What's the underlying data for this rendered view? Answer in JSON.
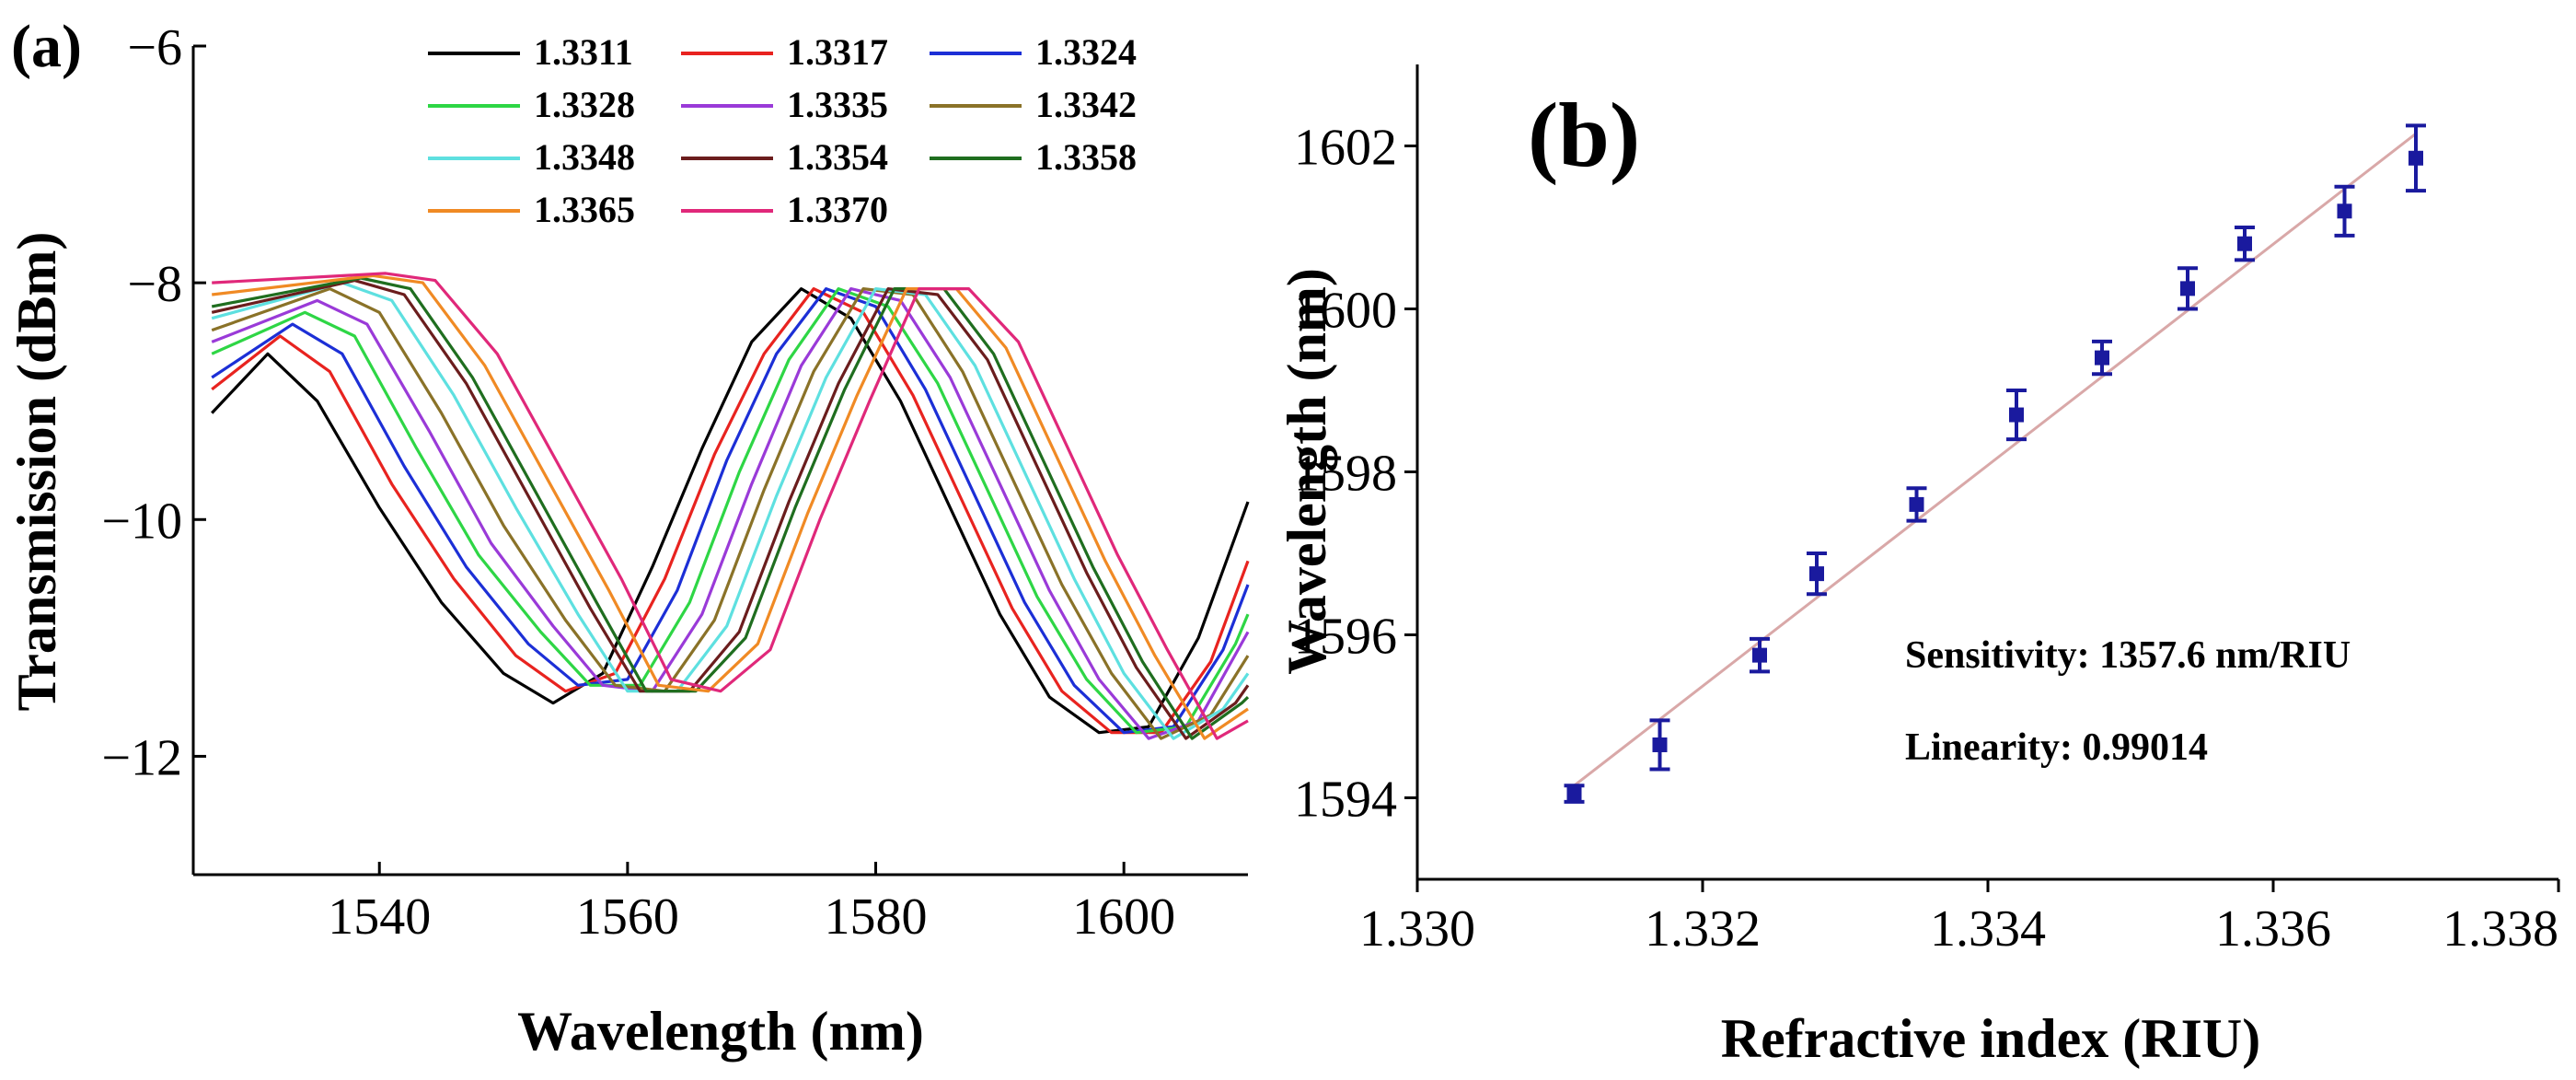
{
  "chart_data": [
    {
      "panel": "(a)",
      "type": "line",
      "xlabel": "Wavelength (nm)",
      "ylabel": "Transmission (dBm)",
      "xlim": [
        1525,
        1610
      ],
      "ylim": [
        -13,
        -6
      ],
      "xticks": [
        "1540",
        "1560",
        "1580",
        "1600"
      ],
      "xtick_values": [
        1540,
        1560,
        1580,
        1600
      ],
      "yticks": [
        "−6",
        "−8",
        "−10",
        "−12"
      ],
      "ytick_values": [
        -6,
        -8,
        -10,
        -12
      ],
      "grid": false,
      "legend_position": "top",
      "series": [
        {
          "name": "1.3311",
          "color": "#000000",
          "values": [
            [
              1526.5,
              -9.1
            ],
            [
              1531,
              -8.6
            ],
            [
              1535,
              -9.0
            ],
            [
              1540,
              -9.9
            ],
            [
              1545,
              -10.7
            ],
            [
              1550,
              -11.3
            ],
            [
              1554,
              -11.55
            ],
            [
              1558,
              -11.3
            ],
            [
              1562,
              -10.4
            ],
            [
              1566,
              -9.4
            ],
            [
              1570,
              -8.5
            ],
            [
              1574,
              -8.05
            ],
            [
              1578,
              -8.3
            ],
            [
              1582,
              -9.0
            ],
            [
              1586,
              -9.9
            ],
            [
              1590,
              -10.8
            ],
            [
              1594,
              -11.5
            ],
            [
              1598,
              -11.8
            ],
            [
              1602,
              -11.75
            ],
            [
              1606,
              -11.0
            ],
            [
              1610,
              -9.85
            ]
          ]
        },
        {
          "name": "1.3317",
          "color": "#e8231f",
          "values": [
            [
              1526.5,
              -8.9
            ],
            [
              1532,
              -8.45
            ],
            [
              1536,
              -8.75
            ],
            [
              1541,
              -9.7
            ],
            [
              1546,
              -10.5
            ],
            [
              1551,
              -11.15
            ],
            [
              1555,
              -11.45
            ],
            [
              1559,
              -11.3
            ],
            [
              1563,
              -10.5
            ],
            [
              1567,
              -9.45
            ],
            [
              1571,
              -8.6
            ],
            [
              1575,
              -8.05
            ],
            [
              1579,
              -8.25
            ],
            [
              1583,
              -8.95
            ],
            [
              1587,
              -9.85
            ],
            [
              1591,
              -10.75
            ],
            [
              1595,
              -11.45
            ],
            [
              1599,
              -11.8
            ],
            [
              1603,
              -11.8
            ],
            [
              1607,
              -11.2
            ],
            [
              1610,
              -10.35
            ]
          ]
        },
        {
          "name": "1.3324",
          "color": "#1c2fd6",
          "values": [
            [
              1526.5,
              -8.8
            ],
            [
              1533,
              -8.35
            ],
            [
              1537,
              -8.6
            ],
            [
              1542,
              -9.55
            ],
            [
              1547,
              -10.4
            ],
            [
              1552,
              -11.05
            ],
            [
              1556,
              -11.4
            ],
            [
              1560,
              -11.35
            ],
            [
              1564,
              -10.6
            ],
            [
              1568,
              -9.5
            ],
            [
              1572,
              -8.6
            ],
            [
              1576,
              -8.05
            ],
            [
              1580,
              -8.2
            ],
            [
              1584,
              -8.9
            ],
            [
              1588,
              -9.8
            ],
            [
              1592,
              -10.7
            ],
            [
              1596,
              -11.4
            ],
            [
              1600,
              -11.8
            ],
            [
              1604,
              -11.75
            ],
            [
              1608,
              -11.1
            ],
            [
              1610,
              -10.55
            ]
          ]
        },
        {
          "name": "1.3328",
          "color": "#2ed645",
          "values": [
            [
              1526.5,
              -8.6
            ],
            [
              1534,
              -8.25
            ],
            [
              1538,
              -8.45
            ],
            [
              1543,
              -9.4
            ],
            [
              1548,
              -10.3
            ],
            [
              1553,
              -10.95
            ],
            [
              1557,
              -11.4
            ],
            [
              1561,
              -11.4
            ],
            [
              1565,
              -10.7
            ],
            [
              1569,
              -9.6
            ],
            [
              1573,
              -8.65
            ],
            [
              1577,
              -8.05
            ],
            [
              1581,
              -8.2
            ],
            [
              1585,
              -8.85
            ],
            [
              1589,
              -9.75
            ],
            [
              1593,
              -10.65
            ],
            [
              1597,
              -11.35
            ],
            [
              1601,
              -11.8
            ],
            [
              1605,
              -11.75
            ],
            [
              1609,
              -11.05
            ],
            [
              1610,
              -10.8
            ]
          ]
        },
        {
          "name": "1.3335",
          "color": "#9a3ad8",
          "values": [
            [
              1526.5,
              -8.5
            ],
            [
              1535,
              -8.15
            ],
            [
              1539,
              -8.35
            ],
            [
              1544,
              -9.25
            ],
            [
              1549,
              -10.2
            ],
            [
              1554,
              -10.9
            ],
            [
              1558,
              -11.4
            ],
            [
              1562,
              -11.45
            ],
            [
              1566,
              -10.8
            ],
            [
              1570,
              -9.7
            ],
            [
              1574,
              -8.7
            ],
            [
              1578,
              -8.05
            ],
            [
              1582,
              -8.15
            ],
            [
              1586,
              -8.8
            ],
            [
              1590,
              -9.7
            ],
            [
              1594,
              -10.6
            ],
            [
              1598,
              -11.35
            ],
            [
              1602,
              -11.85
            ],
            [
              1606,
              -11.7
            ],
            [
              1610,
              -10.95
            ]
          ]
        },
        {
          "name": "1.3342",
          "color": "#8a7228",
          "values": [
            [
              1526.5,
              -8.4
            ],
            [
              1536,
              -8.05
            ],
            [
              1540,
              -8.25
            ],
            [
              1545,
              -9.1
            ],
            [
              1550,
              -10.05
            ],
            [
              1555,
              -10.85
            ],
            [
              1559,
              -11.4
            ],
            [
              1563,
              -11.45
            ],
            [
              1567,
              -10.85
            ],
            [
              1571,
              -9.75
            ],
            [
              1575,
              -8.75
            ],
            [
              1579,
              -8.05
            ],
            [
              1583,
              -8.1
            ],
            [
              1587,
              -8.75
            ],
            [
              1591,
              -9.65
            ],
            [
              1595,
              -10.55
            ],
            [
              1599,
              -11.3
            ],
            [
              1603,
              -11.85
            ],
            [
              1607,
              -11.65
            ],
            [
              1610,
              -11.15
            ]
          ]
        },
        {
          "name": "1.3348",
          "color": "#5ee0e0",
          "values": [
            [
              1526.5,
              -8.3
            ],
            [
              1537,
              -8.0
            ],
            [
              1541,
              -8.15
            ],
            [
              1546,
              -8.95
            ],
            [
              1551,
              -9.9
            ],
            [
              1556,
              -10.8
            ],
            [
              1560,
              -11.45
            ],
            [
              1564,
              -11.45
            ],
            [
              1568,
              -10.9
            ],
            [
              1572,
              -9.8
            ],
            [
              1576,
              -8.8
            ],
            [
              1580,
              -8.05
            ],
            [
              1584,
              -8.1
            ],
            [
              1588,
              -8.7
            ],
            [
              1592,
              -9.6
            ],
            [
              1596,
              -10.5
            ],
            [
              1600,
              -11.3
            ],
            [
              1604,
              -11.85
            ],
            [
              1608,
              -11.6
            ],
            [
              1610,
              -11.3
            ]
          ]
        },
        {
          "name": "1.3354",
          "color": "#6b1d1d",
          "values": [
            [
              1526.5,
              -8.25
            ],
            [
              1538,
              -7.98
            ],
            [
              1542,
              -8.1
            ],
            [
              1547,
              -8.85
            ],
            [
              1552,
              -9.8
            ],
            [
              1557,
              -10.75
            ],
            [
              1561,
              -11.45
            ],
            [
              1565,
              -11.45
            ],
            [
              1569,
              -10.95
            ],
            [
              1573,
              -9.85
            ],
            [
              1577,
              -8.85
            ],
            [
              1581,
              -8.05
            ],
            [
              1585,
              -8.1
            ],
            [
              1589,
              -8.65
            ],
            [
              1593,
              -9.55
            ],
            [
              1597,
              -10.45
            ],
            [
              1601,
              -11.25
            ],
            [
              1605,
              -11.85
            ],
            [
              1609,
              -11.55
            ],
            [
              1610,
              -11.4
            ]
          ]
        },
        {
          "name": "1.3358",
          "color": "#1f6e1f",
          "values": [
            [
              1526.5,
              -8.2
            ],
            [
              1538.5,
              -7.96
            ],
            [
              1542.5,
              -8.05
            ],
            [
              1547.5,
              -8.8
            ],
            [
              1552.5,
              -9.75
            ],
            [
              1557.5,
              -10.7
            ],
            [
              1561.5,
              -11.45
            ],
            [
              1565.5,
              -11.45
            ],
            [
              1569.5,
              -11.0
            ],
            [
              1573.5,
              -9.9
            ],
            [
              1577.5,
              -8.9
            ],
            [
              1581.5,
              -8.05
            ],
            [
              1585.5,
              -8.05
            ],
            [
              1589.5,
              -8.6
            ],
            [
              1593.5,
              -9.5
            ],
            [
              1597.5,
              -10.4
            ],
            [
              1601.5,
              -11.2
            ],
            [
              1605.5,
              -11.85
            ],
            [
              1609.5,
              -11.55
            ],
            [
              1610,
              -11.5
            ]
          ]
        },
        {
          "name": "1.3365",
          "color": "#f08a24",
          "values": [
            [
              1526.5,
              -8.1
            ],
            [
              1539.5,
              -7.94
            ],
            [
              1543.5,
              -8.0
            ],
            [
              1548.5,
              -8.7
            ],
            [
              1553.5,
              -9.65
            ],
            [
              1558.5,
              -10.6
            ],
            [
              1562.5,
              -11.4
            ],
            [
              1566.5,
              -11.45
            ],
            [
              1570.5,
              -11.05
            ],
            [
              1574.5,
              -9.95
            ],
            [
              1578.5,
              -8.95
            ],
            [
              1582.5,
              -8.05
            ],
            [
              1586.5,
              -8.05
            ],
            [
              1590.5,
              -8.55
            ],
            [
              1594.5,
              -9.45
            ],
            [
              1598.5,
              -10.35
            ],
            [
              1602.5,
              -11.15
            ],
            [
              1606.5,
              -11.85
            ],
            [
              1610,
              -11.6
            ]
          ]
        },
        {
          "name": "1.3370",
          "color": "#e0287a",
          "values": [
            [
              1526.5,
              -8.0
            ],
            [
              1540.5,
              -7.92
            ],
            [
              1544.5,
              -7.98
            ],
            [
              1549.5,
              -8.6
            ],
            [
              1554.5,
              -9.55
            ],
            [
              1559.5,
              -10.5
            ],
            [
              1563.5,
              -11.35
            ],
            [
              1567.5,
              -11.45
            ],
            [
              1571.5,
              -11.1
            ],
            [
              1575.5,
              -10.0
            ],
            [
              1579.5,
              -9.0
            ],
            [
              1583.5,
              -8.05
            ],
            [
              1587.5,
              -8.05
            ],
            [
              1591.5,
              -8.5
            ],
            [
              1595.5,
              -9.4
            ],
            [
              1599.5,
              -10.3
            ],
            [
              1603.5,
              -11.1
            ],
            [
              1607.5,
              -11.85
            ],
            [
              1610,
              -11.7
            ]
          ]
        }
      ]
    },
    {
      "panel": "(b)",
      "type": "scatter",
      "xlabel": "Refractive index (RIU)",
      "ylabel": "Wavelength (nm)",
      "xlim": [
        1.33,
        1.338
      ],
      "ylim": [
        1593,
        1603
      ],
      "xticks": [
        "1.330",
        "1.332",
        "1.334",
        "1.336",
        "1.338"
      ],
      "xtick_values": [
        1.33,
        1.332,
        1.334,
        1.336,
        1.338
      ],
      "yticks": [
        "1594",
        "1596",
        "1598",
        "1600",
        "1602"
      ],
      "ytick_values": [
        1594,
        1596,
        1598,
        1600,
        1602
      ],
      "grid": false,
      "marker_color": "#1a1a9e",
      "fit_color": "#d9a8a8",
      "points": [
        {
          "x": 1.3311,
          "y": 1594.05,
          "err": 0.1
        },
        {
          "x": 1.3317,
          "y": 1594.65,
          "err": 0.3
        },
        {
          "x": 1.3324,
          "y": 1595.75,
          "err": 0.2
        },
        {
          "x": 1.3328,
          "y": 1596.75,
          "err": 0.25
        },
        {
          "x": 1.3335,
          "y": 1597.6,
          "err": 0.2
        },
        {
          "x": 1.3342,
          "y": 1598.7,
          "err": 0.3
        },
        {
          "x": 1.3348,
          "y": 1599.4,
          "err": 0.2
        },
        {
          "x": 1.3354,
          "y": 1600.25,
          "err": 0.25
        },
        {
          "x": 1.3358,
          "y": 1600.8,
          "err": 0.2
        },
        {
          "x": 1.3365,
          "y": 1601.2,
          "err": 0.3
        },
        {
          "x": 1.337,
          "y": 1601.85,
          "err": 0.4
        }
      ],
      "fit_line": [
        [
          1.3311,
          1594.15
        ],
        [
          1.337,
          1602.15
        ]
      ],
      "annotations": {
        "sensitivity": "Sensitivity: 1357.6 nm/RIU",
        "linearity": "Linearity: 0.99014"
      }
    }
  ]
}
